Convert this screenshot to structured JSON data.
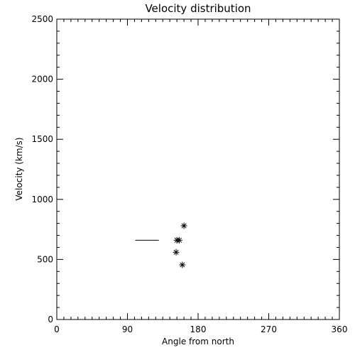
{
  "chart_data": {
    "type": "scatter",
    "title": "Velocity distribution",
    "xlabel": "Angle from north",
    "ylabel": "Velocity (km/s)",
    "xlim": [
      0,
      360
    ],
    "ylim": [
      0,
      2500
    ],
    "xticks": [
      0,
      90,
      180,
      270,
      360
    ],
    "yticks": [
      0,
      500,
      1000,
      1500,
      2000,
      2500
    ],
    "grid": false,
    "marker": "asterisk",
    "points": [
      {
        "x": 162,
        "y": 780
      },
      {
        "x": 156,
        "y": 660
      },
      {
        "x": 153,
        "y": 660
      },
      {
        "x": 152,
        "y": 560
      },
      {
        "x": 160,
        "y": 455
      }
    ],
    "range_bar": {
      "x_start": 100,
      "x_end": 130,
      "y": 660
    }
  }
}
